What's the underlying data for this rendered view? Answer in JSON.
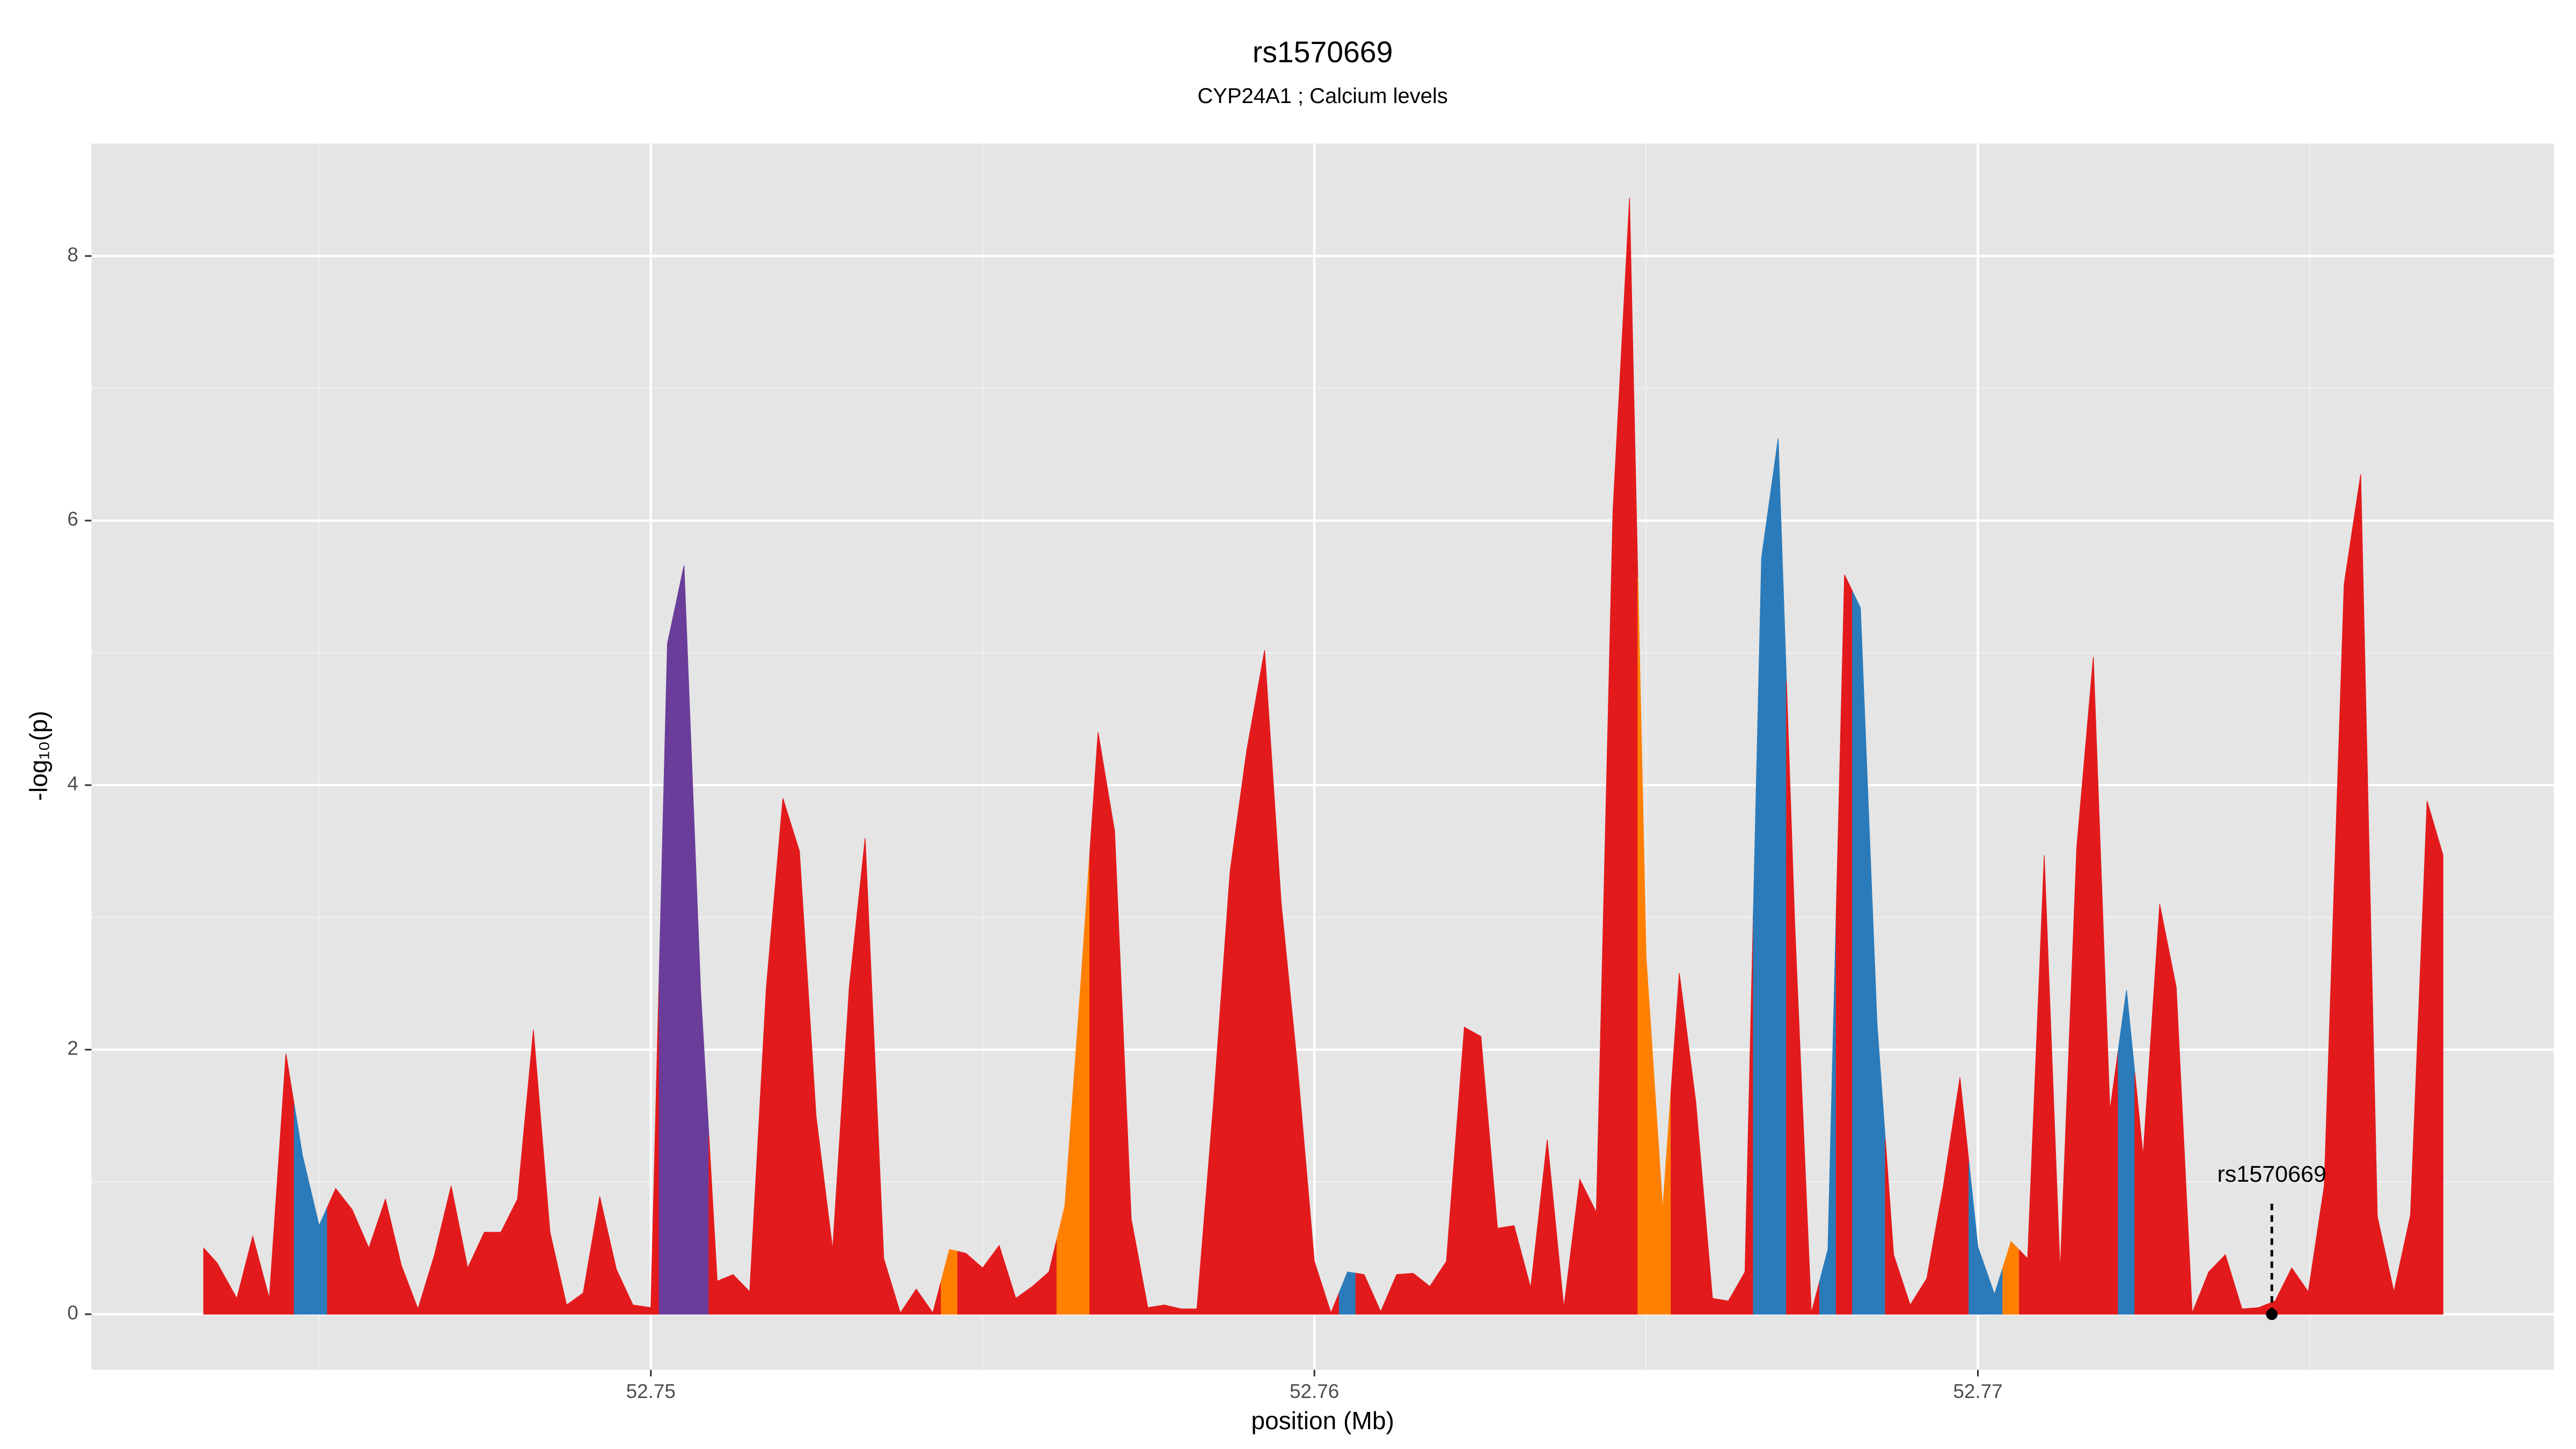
{
  "chart_data": {
    "type": "area",
    "title": "rs1570669",
    "subtitle": "CYP24A1 ; Calcium levels",
    "x_label": "position (Mb)",
    "y_label": "-log₁₀(p)",
    "xlim": [
      52.74157,
      52.77868
    ],
    "ylim": [
      -0.42,
      8.85
    ],
    "xticks": [
      52.75,
      52.76,
      52.77
    ],
    "yticks": [
      0,
      2,
      4,
      6,
      8
    ],
    "xminor": [
      52.745,
      52.755,
      52.765,
      52.775
    ],
    "yminor": [
      1,
      3,
      5,
      7
    ],
    "grid": true,
    "background": "#e5e5e5",
    "annotation": {
      "text": "rs1570669",
      "x": 52.77443,
      "y": 0
    },
    "x": [
      52.74326,
      52.74346,
      52.74376,
      52.744,
      52.74425,
      52.7445,
      52.74475,
      52.745,
      52.74525,
      52.7455,
      52.74575,
      52.746,
      52.74624,
      52.74649,
      52.74674,
      52.74699,
      52.74724,
      52.74749,
      52.74774,
      52.74799,
      52.74823,
      52.74848,
      52.74873,
      52.74898,
      52.74923,
      52.74948,
      52.74973,
      52.75,
      52.75025,
      52.7505,
      52.75075,
      52.751,
      52.75124,
      52.75149,
      52.75174,
      52.75199,
      52.75224,
      52.75249,
      52.75274,
      52.75299,
      52.75323,
      52.75351,
      52.75376,
      52.754,
      52.75425,
      52.7545,
      52.75475,
      52.755,
      52.75525,
      52.7555,
      52.75575,
      52.756,
      52.75624,
      52.75649,
      52.75674,
      52.75699,
      52.75724,
      52.75749,
      52.75774,
      52.75799,
      52.75823,
      52.75848,
      52.75873,
      52.75898,
      52.75925,
      52.7595,
      52.75975,
      52.76,
      52.76025,
      52.7605,
      52.76075,
      52.761,
      52.76124,
      52.76149,
      52.76174,
      52.76199,
      52.76226,
      52.76251,
      52.76276,
      52.76301,
      52.76326,
      52.76351,
      52.76376,
      52.764,
      52.76425,
      52.7645,
      52.76475,
      52.765,
      52.76525,
      52.7655,
      52.76575,
      52.766,
      52.76624,
      52.76649,
      52.76674,
      52.76699,
      52.76724,
      52.76749,
      52.76774,
      52.76799,
      52.76823,
      52.76848,
      52.76873,
      52.76898,
      52.76923,
      52.76948,
      52.76973,
      52.77,
      52.77025,
      52.7705,
      52.77075,
      52.771,
      52.77124,
      52.77149,
      52.77174,
      52.77199,
      52.77224,
      52.77249,
      52.77274,
      52.77299,
      52.77323,
      52.77348,
      52.77373,
      52.77398,
      52.77423,
      52.77448,
      52.77473,
      52.77498,
      52.77522,
      52.77552,
      52.77577,
      52.77602,
      52.77627,
      52.77652,
      52.77677,
      52.77701
    ],
    "values": [
      0.5,
      0.39,
      0.12,
      0.59,
      0.12,
      1.97,
      1.2,
      0.67,
      0.95,
      0.79,
      0.5,
      0.87,
      0.37,
      0.04,
      0.45,
      0.97,
      0.35,
      0.62,
      0.62,
      0.87,
      2.15,
      0.62,
      0.07,
      0.16,
      0.89,
      0.34,
      0.07,
      0.05,
      5.07,
      5.66,
      2.45,
      0.25,
      0.3,
      0.17,
      2.47,
      3.9,
      3.5,
      1.5,
      0.49,
      2.47,
      3.6,
      0.42,
      0.01,
      0.19,
      0.01,
      0.49,
      0.46,
      0.35,
      0.52,
      0.12,
      0.21,
      0.32,
      0.82,
      2.57,
      4.4,
      3.65,
      0.72,
      0.05,
      0.07,
      0.04,
      0.04,
      1.6,
      3.35,
      4.26,
      5.02,
      3.11,
      1.85,
      0.4,
      0.01,
      0.32,
      0.3,
      0.02,
      0.3,
      0.31,
      0.21,
      0.4,
      2.17,
      2.1,
      0.65,
      0.67,
      0.2,
      1.32,
      0.05,
      1.02,
      0.77,
      6.07,
      8.44,
      2.7,
      0.79,
      2.58,
      1.6,
      0.12,
      0.1,
      0.32,
      5.72,
      6.62,
      2.95,
      0.01,
      0.49,
      5.59,
      5.34,
      2.2,
      0.45,
      0.07,
      0.27,
      0.97,
      1.79,
      0.51,
      0.15,
      0.55,
      0.42,
      3.47,
      0.32,
      3.53,
      4.97,
      1.54,
      2.45,
      1.2,
      3.1,
      2.47,
      0.01,
      0.32,
      0.45,
      0.04,
      0.05,
      0.1,
      0.35,
      0.17,
      0.97,
      5.52,
      6.35,
      0.74,
      0.17,
      0.75,
      3.88,
      3.47
    ],
    "colors": [
      "#e31a1c",
      "#e31a1c",
      "#e31a1c",
      "#e31a1c",
      "#e31a1c",
      "#e31a1c",
      "#2b7bba",
      "#2b7bba",
      "#e31a1c",
      "#e31a1c",
      "#e31a1c",
      "#e31a1c",
      "#e31a1c",
      "#e31a1c",
      "#e31a1c",
      "#e31a1c",
      "#e31a1c",
      "#e31a1c",
      "#e31a1c",
      "#e31a1c",
      "#e31a1c",
      "#e31a1c",
      "#e31a1c",
      "#e31a1c",
      "#e31a1c",
      "#e31a1c",
      "#e31a1c",
      "#e31a1c",
      "#6a3d9a",
      "#6a3d9a",
      "#6a3d9a",
      "#e31a1c",
      "#e31a1c",
      "#e31a1c",
      "#e31a1c",
      "#e31a1c",
      "#e31a1c",
      "#e31a1c",
      "#e31a1c",
      "#e31a1c",
      "#e31a1c",
      "#e31a1c",
      "#e31a1c",
      "#e31a1c",
      "#e31a1c",
      "#ff7f00",
      "#e31a1c",
      "#e31a1c",
      "#e31a1c",
      "#e31a1c",
      "#e31a1c",
      "#e31a1c",
      "#ff7f00",
      "#ff7f00",
      "#e31a1c",
      "#e31a1c",
      "#e31a1c",
      "#e31a1c",
      "#e31a1c",
      "#e31a1c",
      "#e31a1c",
      "#e31a1c",
      "#e31a1c",
      "#e31a1c",
      "#e31a1c",
      "#e31a1c",
      "#e31a1c",
      "#e31a1c",
      "#e31a1c",
      "#2b7bba",
      "#e31a1c",
      "#e31a1c",
      "#e31a1c",
      "#e31a1c",
      "#e31a1c",
      "#e31a1c",
      "#e31a1c",
      "#e31a1c",
      "#e31a1c",
      "#e31a1c",
      "#e31a1c",
      "#e31a1c",
      "#e31a1c",
      "#e31a1c",
      "#e31a1c",
      "#e31a1c",
      "#e31a1c",
      "#ff7f00",
      "#ff7f00",
      "#e31a1c",
      "#e31a1c",
      "#e31a1c",
      "#e31a1c",
      "#e31a1c",
      "#2b7bba",
      "#2b7bba",
      "#e31a1c",
      "#e31a1c",
      "#2b7bba",
      "#e31a1c",
      "#2b7bba",
      "#2b7bba",
      "#e31a1c",
      "#e31a1c",
      "#e31a1c",
      "#e31a1c",
      "#e31a1c",
      "#2b7bba",
      "#2b7bba",
      "#ff7f00",
      "#e31a1c",
      "#e31a1c",
      "#e31a1c",
      "#e31a1c",
      "#e31a1c",
      "#e31a1c",
      "#2b7bba",
      "#e31a1c",
      "#e31a1c",
      "#e31a1c",
      "#e31a1c",
      "#e31a1c",
      "#e31a1c",
      "#e31a1c",
      "#e31a1c",
      "#e31a1c",
      "#e31a1c",
      "#e31a1c",
      "#e31a1c",
      "#e31a1c",
      "#e31a1c",
      "#e31a1c",
      "#e31a1c",
      "#e31a1c",
      "#e31a1c",
      "#e31a1c",
      "#e31a1c"
    ]
  }
}
